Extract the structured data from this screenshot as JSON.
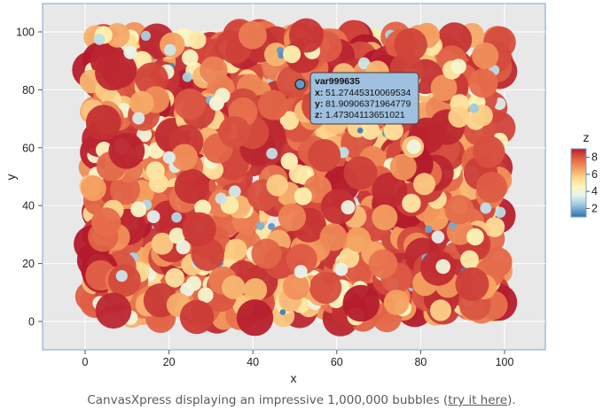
{
  "chart_data": {
    "type": "scatter",
    "subtype": "bubble",
    "xlabel": "x",
    "ylabel": "y",
    "xlim": [
      -10,
      110
    ],
    "ylim": [
      -10,
      110
    ],
    "x_ticks": [
      0,
      20,
      40,
      60,
      80,
      100
    ],
    "y_ticks": [
      0,
      20,
      40,
      60,
      80,
      100
    ],
    "grid": true,
    "legend": {
      "title": "z",
      "placement": "right",
      "ticks": [
        2,
        4,
        6,
        8
      ],
      "range": [
        1,
        9
      ],
      "colors": [
        "#2e6fb0",
        "#9ecae1",
        "#e8f4ee",
        "#fff6b8",
        "#fdd38a",
        "#f4a261",
        "#e76f4c",
        "#d1443a",
        "#b2182b"
      ]
    },
    "points_described": "1,000,000 bubbles uniformly covering x 0–100, y 0–100 (sample drawn)",
    "highlighted_point": {
      "name": "var999635",
      "x": 51.27445310069534,
      "y": 81.90906371964779,
      "z": 1.47304113651021
    }
  },
  "tooltip": {
    "name": "var999635",
    "x_label": "x:",
    "x_value": "51.27445310069534",
    "y_label": "y:",
    "y_value": "81.90906371964779",
    "z_label": "z:",
    "z_value": "1.47304113651021"
  },
  "caption": {
    "text_before": "CanvasXpress displaying an impressive 1,000,000 bubbles (",
    "link_text": "try it here",
    "text_after": ")."
  }
}
